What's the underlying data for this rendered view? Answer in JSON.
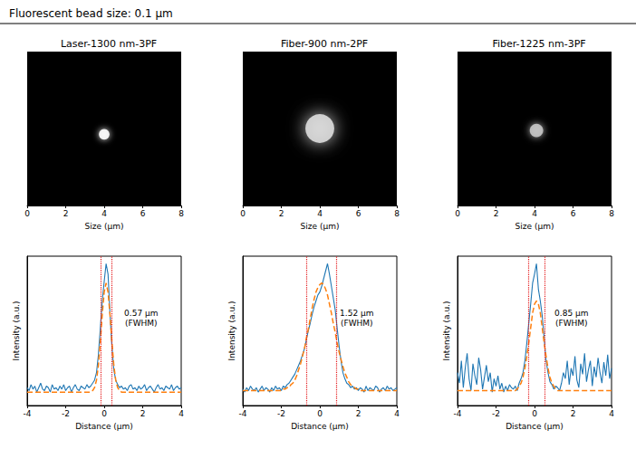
{
  "title": "Fluorescent bead size: 0.1 µm",
  "chart_data": [
    {
      "type": "image",
      "title": "Laser-1300 nm-3PF",
      "x_label": "Size (µm)",
      "xlim": [
        0,
        8
      ],
      "xticks": [
        0,
        2,
        4,
        6,
        8
      ],
      "ylim": [
        0,
        8
      ],
      "tick_labels": "x",
      "grid": false,
      "color": "#ffffff",
      "bead": {
        "x": 4.0,
        "y": 3.7,
        "diameter": 0.55
      }
    },
    {
      "type": "line",
      "x_label": "Distance (µm)",
      "y_label": "Intensity (a.u.)",
      "xlim": [
        -4,
        4
      ],
      "xticks": [
        -4,
        -2,
        0,
        2,
        4
      ],
      "ylim": [
        0,
        1
      ],
      "yticks": [],
      "tick_labels": "x",
      "grid": false,
      "x": [
        -4.0,
        -3.9,
        -3.8,
        -3.7,
        -3.6,
        -3.5,
        -3.4,
        -3.3,
        -3.2,
        -3.1,
        -3.0,
        -2.9,
        -2.8,
        -2.7,
        -2.6,
        -2.5,
        -2.4,
        -2.3,
        -2.2,
        -2.1,
        -2.0,
        -1.9,
        -1.8,
        -1.7,
        -1.6,
        -1.5,
        -1.4,
        -1.3,
        -1.2,
        -1.1,
        -1.0,
        -0.9,
        -0.8,
        -0.7,
        -0.6,
        -0.5,
        -0.4,
        -0.3,
        -0.2,
        -0.1,
        0.0,
        0.1,
        0.2,
        0.3,
        0.4,
        0.5,
        0.6,
        0.7,
        0.8,
        0.9,
        1.0,
        1.1,
        1.2,
        1.3,
        1.4,
        1.5,
        1.6,
        1.7,
        1.8,
        1.9,
        2.0,
        2.1,
        2.2,
        2.3,
        2.4,
        2.5,
        2.6,
        2.7,
        2.8,
        2.9,
        3.0,
        3.1,
        3.2,
        3.3,
        3.4,
        3.5,
        3.6,
        3.7,
        3.8,
        3.9,
        4.0
      ],
      "series": [
        {
          "color": "#1f77b4",
          "line_style": "solid",
          "values": [
            0.12,
            0.1,
            0.14,
            0.11,
            0.13,
            0.09,
            0.12,
            0.15,
            0.11,
            0.1,
            0.13,
            0.12,
            0.09,
            0.14,
            0.11,
            0.12,
            0.1,
            0.13,
            0.11,
            0.14,
            0.1,
            0.12,
            0.13,
            0.09,
            0.12,
            0.14,
            0.11,
            0.1,
            0.13,
            0.12,
            0.11,
            0.14,
            0.12,
            0.13,
            0.15,
            0.17,
            0.22,
            0.34,
            0.52,
            0.7,
            0.83,
            0.95,
            0.88,
            0.62,
            0.4,
            0.24,
            0.17,
            0.14,
            0.12,
            0.13,
            0.11,
            0.12,
            0.1,
            0.13,
            0.14,
            0.11,
            0.12,
            0.1,
            0.13,
            0.11,
            0.12,
            0.14,
            0.1,
            0.12,
            0.13,
            0.11,
            0.09,
            0.12,
            0.14,
            0.11,
            0.12,
            0.1,
            0.13,
            0.12,
            0.11,
            0.14,
            0.1,
            0.12,
            0.13,
            0.11,
            0.12
          ]
        },
        {
          "color": "#ff7f0e",
          "line_style": "dashed",
          "values": [
            0.09,
            0.09,
            0.09,
            0.09,
            0.09,
            0.09,
            0.09,
            0.09,
            0.09,
            0.09,
            0.09,
            0.09,
            0.09,
            0.09,
            0.09,
            0.09,
            0.09,
            0.09,
            0.09,
            0.09,
            0.09,
            0.09,
            0.09,
            0.09,
            0.09,
            0.09,
            0.09,
            0.09,
            0.09,
            0.09,
            0.09,
            0.09,
            0.09,
            0.09,
            0.1,
            0.12,
            0.17,
            0.27,
            0.43,
            0.61,
            0.76,
            0.82,
            0.76,
            0.61,
            0.43,
            0.27,
            0.17,
            0.12,
            0.1,
            0.09,
            0.09,
            0.09,
            0.09,
            0.09,
            0.09,
            0.09,
            0.09,
            0.09,
            0.09,
            0.09,
            0.09,
            0.09,
            0.09,
            0.09,
            0.09,
            0.09,
            0.09,
            0.09,
            0.09,
            0.09,
            0.09,
            0.09,
            0.09,
            0.09,
            0.09,
            0.09,
            0.09,
            0.09,
            0.09,
            0.09,
            0.09
          ]
        }
      ],
      "fwhm": {
        "x": [
          -0.18,
          0.39
        ],
        "color": "#e41a1c",
        "line_style": "dotted"
      },
      "annotation": [
        "0.57 µm",
        "(FWHM)"
      ]
    },
    {
      "type": "image",
      "title": "Fiber-900 nm-2PF",
      "x_label": "Size (µm)",
      "xlim": [
        0,
        8
      ],
      "xticks": [
        0,
        2,
        4,
        6,
        8
      ],
      "ylim": [
        0,
        8
      ],
      "tick_labels": "x",
      "grid": false,
      "color": "#dddddd",
      "bead": {
        "x": 4.0,
        "y": 4.0,
        "diameter": 1.5
      }
    },
    {
      "type": "line",
      "x_label": "Distance (µm)",
      "y_label": "Intensity (a.u.)",
      "xlim": [
        -4,
        4
      ],
      "xticks": [
        -4,
        -2,
        0,
        2,
        4
      ],
      "ylim": [
        0,
        1
      ],
      "yticks": [],
      "tick_labels": "x",
      "grid": false,
      "x": [
        -4.0,
        -3.9,
        -3.8,
        -3.7,
        -3.6,
        -3.5,
        -3.4,
        -3.3,
        -3.2,
        -3.1,
        -3.0,
        -2.9,
        -2.8,
        -2.7,
        -2.6,
        -2.5,
        -2.4,
        -2.3,
        -2.2,
        -2.1,
        -2.0,
        -1.9,
        -1.8,
        -1.7,
        -1.6,
        -1.5,
        -1.4,
        -1.3,
        -1.2,
        -1.1,
        -1.0,
        -0.9,
        -0.8,
        -0.7,
        -0.6,
        -0.5,
        -0.4,
        -0.3,
        -0.2,
        -0.1,
        0.0,
        0.1,
        0.2,
        0.3,
        0.4,
        0.5,
        0.6,
        0.7,
        0.8,
        0.9,
        1.0,
        1.1,
        1.2,
        1.3,
        1.4,
        1.5,
        1.6,
        1.7,
        1.8,
        1.9,
        2.0,
        2.1,
        2.2,
        2.3,
        2.4,
        2.5,
        2.6,
        2.7,
        2.8,
        2.9,
        3.0,
        3.1,
        3.2,
        3.3,
        3.4,
        3.5,
        3.6,
        3.7,
        3.8,
        3.9,
        4.0
      ],
      "series": [
        {
          "color": "#1f77b4",
          "line_style": "solid",
          "values": [
            0.11,
            0.09,
            0.12,
            0.1,
            0.13,
            0.11,
            0.1,
            0.12,
            0.09,
            0.11,
            0.13,
            0.1,
            0.12,
            0.11,
            0.09,
            0.12,
            0.1,
            0.13,
            0.11,
            0.12,
            0.1,
            0.13,
            0.12,
            0.14,
            0.15,
            0.17,
            0.19,
            0.21,
            0.24,
            0.27,
            0.3,
            0.34,
            0.38,
            0.44,
            0.5,
            0.55,
            0.61,
            0.66,
            0.7,
            0.74,
            0.76,
            0.8,
            0.85,
            0.9,
            0.95,
            0.88,
            0.8,
            0.72,
            0.64,
            0.52,
            0.4,
            0.3,
            0.22,
            0.18,
            0.15,
            0.14,
            0.12,
            0.13,
            0.11,
            0.12,
            0.1,
            0.12,
            0.11,
            0.09,
            0.13,
            0.1,
            0.12,
            0.11,
            0.1,
            0.13,
            0.12,
            0.09,
            0.11,
            0.12,
            0.1,
            0.13,
            0.11,
            0.12,
            0.1,
            0.11,
            0.12
          ]
        },
        {
          "color": "#ff7f0e",
          "line_style": "dashed",
          "values": [
            0.1,
            0.1,
            0.1,
            0.1,
            0.1,
            0.1,
            0.1,
            0.1,
            0.1,
            0.1,
            0.1,
            0.1,
            0.1,
            0.1,
            0.1,
            0.1,
            0.1,
            0.1,
            0.1,
            0.1,
            0.1,
            0.11,
            0.11,
            0.12,
            0.12,
            0.14,
            0.15,
            0.17,
            0.2,
            0.24,
            0.28,
            0.33,
            0.38,
            0.45,
            0.51,
            0.58,
            0.65,
            0.71,
            0.76,
            0.79,
            0.81,
            0.82,
            0.81,
            0.78,
            0.74,
            0.68,
            0.62,
            0.55,
            0.49,
            0.42,
            0.36,
            0.31,
            0.26,
            0.22,
            0.19,
            0.16,
            0.14,
            0.13,
            0.12,
            0.11,
            0.11,
            0.1,
            0.1,
            0.1,
            0.1,
            0.1,
            0.1,
            0.1,
            0.1,
            0.1,
            0.1,
            0.1,
            0.1,
            0.1,
            0.1,
            0.1,
            0.1,
            0.1,
            0.1,
            0.1,
            0.1
          ]
        }
      ],
      "fwhm": {
        "x": [
          -0.68,
          0.84
        ],
        "color": "#e41a1c",
        "line_style": "dotted"
      },
      "annotation": [
        "1.52 µm",
        "(FWHM)"
      ]
    },
    {
      "type": "image",
      "title": "Fiber-1225 nm-3PF",
      "x_label": "Size (µm)",
      "xlim": [
        0,
        8
      ],
      "xticks": [
        0,
        2,
        4,
        6,
        8
      ],
      "ylim": [
        0,
        8
      ],
      "tick_labels": "x",
      "grid": false,
      "color": "#c8c8c8",
      "bead": {
        "x": 4.1,
        "y": 3.9,
        "diameter": 0.7
      }
    },
    {
      "type": "line",
      "x_label": "Distance (µm)",
      "y_label": "Intensity (a.u.)",
      "xlim": [
        -4,
        4
      ],
      "xticks": [
        -4,
        -2,
        0,
        2,
        4
      ],
      "ylim": [
        0,
        1
      ],
      "yticks": [],
      "tick_labels": "x",
      "grid": false,
      "x": [
        -4.0,
        -3.9,
        -3.8,
        -3.7,
        -3.6,
        -3.5,
        -3.4,
        -3.3,
        -3.2,
        -3.1,
        -3.0,
        -2.9,
        -2.8,
        -2.7,
        -2.6,
        -2.5,
        -2.4,
        -2.3,
        -2.2,
        -2.1,
        -2.0,
        -1.9,
        -1.8,
        -1.7,
        -1.6,
        -1.5,
        -1.4,
        -1.3,
        -1.2,
        -1.1,
        -1.0,
        -0.9,
        -0.8,
        -0.7,
        -0.6,
        -0.5,
        -0.4,
        -0.3,
        -0.2,
        -0.1,
        0.0,
        0.1,
        0.2,
        0.3,
        0.4,
        0.5,
        0.6,
        0.7,
        0.8,
        0.9,
        1.0,
        1.1,
        1.2,
        1.3,
        1.4,
        1.5,
        1.6,
        1.7,
        1.8,
        1.9,
        2.0,
        2.1,
        2.2,
        2.3,
        2.4,
        2.5,
        2.6,
        2.7,
        2.8,
        2.9,
        3.0,
        3.1,
        3.2,
        3.3,
        3.4,
        3.5,
        3.6,
        3.7,
        3.8,
        3.9,
        4.0
      ],
      "series": [
        {
          "color": "#1f77b4",
          "line_style": "solid",
          "values": [
            0.22,
            0.15,
            0.3,
            0.12,
            0.25,
            0.35,
            0.18,
            0.1,
            0.28,
            0.2,
            0.14,
            0.32,
            0.24,
            0.11,
            0.19,
            0.27,
            0.16,
            0.22,
            0.09,
            0.18,
            0.13,
            0.2,
            0.11,
            0.15,
            0.09,
            0.13,
            0.1,
            0.14,
            0.12,
            0.11,
            0.13,
            0.1,
            0.15,
            0.18,
            0.22,
            0.3,
            0.42,
            0.55,
            0.68,
            0.82,
            0.88,
            0.95,
            0.78,
            0.7,
            0.6,
            0.45,
            0.3,
            0.22,
            0.16,
            0.14,
            0.11,
            0.13,
            0.12,
            0.1,
            0.15,
            0.22,
            0.18,
            0.3,
            0.14,
            0.25,
            0.2,
            0.33,
            0.17,
            0.12,
            0.28,
            0.21,
            0.35,
            0.16,
            0.24,
            0.3,
            0.13,
            0.26,
            0.19,
            0.32,
            0.22,
            0.15,
            0.29,
            0.2,
            0.34,
            0.18,
            0.25
          ]
        },
        {
          "color": "#ff7f0e",
          "line_style": "dashed",
          "values": [
            0.1,
            0.1,
            0.1,
            0.1,
            0.1,
            0.1,
            0.1,
            0.1,
            0.1,
            0.1,
            0.1,
            0.1,
            0.1,
            0.1,
            0.1,
            0.1,
            0.1,
            0.1,
            0.1,
            0.1,
            0.1,
            0.1,
            0.1,
            0.1,
            0.1,
            0.1,
            0.1,
            0.1,
            0.1,
            0.1,
            0.1,
            0.11,
            0.13,
            0.15,
            0.19,
            0.25,
            0.33,
            0.42,
            0.52,
            0.62,
            0.68,
            0.7,
            0.68,
            0.62,
            0.52,
            0.42,
            0.33,
            0.25,
            0.19,
            0.15,
            0.13,
            0.11,
            0.1,
            0.1,
            0.1,
            0.1,
            0.1,
            0.1,
            0.1,
            0.1,
            0.1,
            0.1,
            0.1,
            0.1,
            0.1,
            0.1,
            0.1,
            0.1,
            0.1,
            0.1,
            0.1,
            0.1,
            0.1,
            0.1,
            0.1,
            0.1,
            0.1,
            0.1,
            0.1,
            0.1,
            0.1
          ]
        }
      ],
      "fwhm": {
        "x": [
          -0.33,
          0.52
        ],
        "color": "#e41a1c",
        "line_style": "dotted"
      },
      "annotation": [
        "0.85 µm",
        "(FWHM)"
      ]
    }
  ]
}
